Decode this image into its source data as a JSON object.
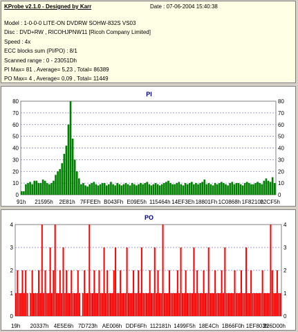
{
  "info": {
    "title": "KProbe v2.1.0 - Designed by Karr",
    "date": "Date : 07-06-2004 15:40:38",
    "lines": [
      "Model : 1-0-0-0 LITE-ON DVDRW SOHW-832S  VS03",
      "Disc : DVD+RW , RICOHJPNW11 [Ricoh Company Limited]",
      "Speed : 4x",
      "ECC blocks sum (PI/PO) : 8/1",
      "Scanned range : 0 - 23051Dh",
      "PI Max= 81 , Average= 5,23 , Total= 86389",
      "PO Max= 4 , Average= 0,09 , Total= 11449"
    ]
  },
  "chart_data": [
    {
      "type": "bar",
      "title": "PI",
      "ylim": [
        0,
        80
      ],
      "yticks": [
        "0",
        "10",
        "20",
        "30",
        "40",
        "50",
        "60",
        "70",
        "80"
      ],
      "xticks": [
        "91h",
        "21595h",
        "2E81h",
        "7FFEEh",
        "B043Fh",
        "E09E5h",
        "115464h",
        "14EF3Eh",
        "18801Fh",
        "1C0868h",
        "1F8210h",
        "22CF5h"
      ],
      "color": "#008000",
      "series": [
        {
          "values": [
            3,
            3,
            9,
            10,
            11,
            9,
            12,
            12,
            10,
            10,
            13,
            12,
            10,
            9,
            10,
            12,
            17,
            20,
            22,
            27,
            35,
            42,
            60,
            80,
            48,
            30,
            20,
            14,
            9,
            10,
            8,
            7,
            9,
            10,
            11,
            9,
            8,
            9,
            10,
            10,
            8,
            9,
            11,
            9,
            8,
            10,
            9,
            8,
            9,
            10,
            9,
            8,
            10,
            9,
            8,
            9,
            10,
            9,
            10,
            11,
            9,
            8,
            9,
            10,
            9,
            8,
            9,
            10,
            11,
            12,
            10,
            9,
            9,
            10,
            11,
            9,
            8,
            10,
            9,
            10,
            11,
            9,
            10,
            9,
            10,
            11,
            13,
            9,
            10,
            9,
            8,
            10,
            9,
            10,
            11,
            10,
            9,
            8,
            10,
            11,
            9,
            10,
            10,
            9,
            8,
            10,
            11,
            10,
            9,
            9,
            10,
            11,
            10,
            9,
            12,
            14,
            12,
            11,
            15,
            10
          ]
        }
      ]
    },
    {
      "type": "bar",
      "title": "PO",
      "ylim": [
        0,
        4
      ],
      "yticks": [
        "0",
        "1",
        "2",
        "3",
        "4"
      ],
      "xticks": [
        "19h",
        "20337h",
        "4E5E6h",
        "7D723h",
        "AE006h",
        "DDF6Fh",
        "112181h",
        "1499F5h",
        "18E4Ch",
        "1B66F0h",
        "1EF803h",
        "226D00h"
      ],
      "color": "#ff0000",
      "series": [
        {
          "values": [
            1,
            2,
            1,
            1,
            2,
            1,
            2,
            1,
            0,
            1,
            2,
            1,
            1,
            1,
            2,
            1,
            4,
            1,
            2,
            1,
            1,
            3,
            1,
            2,
            4,
            1,
            1,
            2,
            1,
            3,
            1,
            2,
            1,
            1,
            2,
            1,
            1,
            1,
            2,
            1,
            0,
            1,
            2,
            1,
            1,
            4,
            1,
            1,
            2,
            1,
            1,
            2,
            1,
            1,
            3,
            1,
            2,
            1,
            1,
            1,
            2,
            3,
            1,
            1,
            2,
            1,
            1,
            1,
            3,
            1,
            1,
            1,
            2,
            1,
            1,
            2,
            1,
            3,
            1,
            1,
            1,
            1,
            2,
            1,
            1,
            3,
            1,
            2,
            1,
            1,
            4,
            1,
            1,
            1,
            2,
            1,
            1,
            1,
            1,
            2,
            1,
            3,
            1,
            1,
            2,
            1,
            1,
            1,
            1,
            3,
            1,
            2,
            1,
            1,
            1,
            2,
            1,
            1,
            3,
            1,
            1,
            1,
            2,
            1,
            1,
            1,
            2,
            1,
            3,
            1,
            1,
            1,
            1,
            1,
            2,
            1,
            1,
            1,
            2,
            1,
            1,
            3,
            1,
            1,
            2,
            1,
            1,
            1,
            1,
            1,
            1,
            2,
            1,
            1,
            1,
            1,
            4,
            2,
            1,
            1,
            2,
            1,
            1
          ]
        }
      ]
    }
  ]
}
